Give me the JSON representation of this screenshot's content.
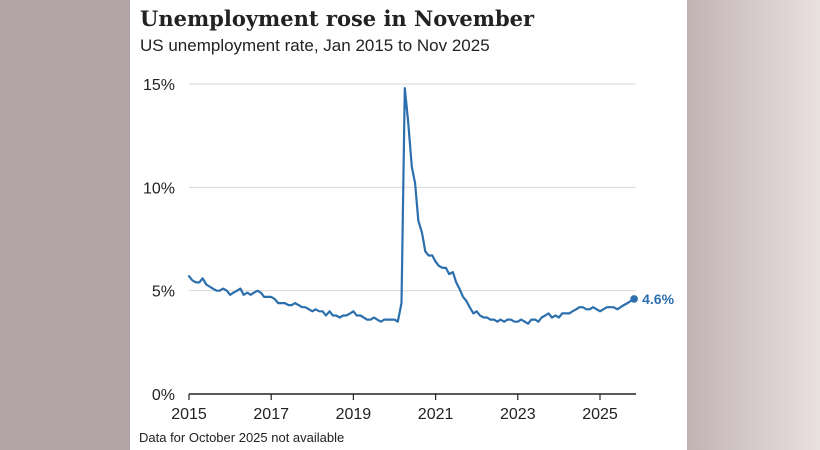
{
  "header": {
    "title": "Unemployment rose in November",
    "subtitle": "US unemployment rate, Jan 2015 to Nov 2025"
  },
  "footnote": "Data for October 2025 not available",
  "colors": {
    "line": "#2c6fad",
    "grid": "#d9d9d9",
    "axis": "#222222",
    "text": "#222222"
  },
  "chart_data": {
    "type": "line",
    "title": "Unemployment rose in November",
    "subtitle": "US unemployment rate, Jan 2015 to Nov 2025",
    "xlabel": "",
    "ylabel": "",
    "xlim": [
      2015,
      2026
    ],
    "ylim": [
      0,
      15
    ],
    "grid": true,
    "x_ticks": [
      2015,
      2017,
      2019,
      2021,
      2023,
      2025
    ],
    "x_tick_labels": [
      "2015",
      "2017",
      "2019",
      "2021",
      "2023",
      "2025"
    ],
    "y_ticks": [
      0,
      5,
      10,
      15
    ],
    "y_tick_labels": [
      "0%",
      "5%",
      "10%",
      "15%"
    ],
    "end_label": "4.6%",
    "series": [
      {
        "values": [
          [
            2015.0,
            5.7
          ],
          [
            2015.08,
            5.5
          ],
          [
            2015.17,
            5.4
          ],
          [
            2015.25,
            5.4
          ],
          [
            2015.33,
            5.6
          ],
          [
            2015.42,
            5.3
          ],
          [
            2015.5,
            5.2
          ],
          [
            2015.58,
            5.1
          ],
          [
            2015.67,
            5.0
          ],
          [
            2015.75,
            5.0
          ],
          [
            2015.83,
            5.1
          ],
          [
            2015.92,
            5.0
          ],
          [
            2016.0,
            4.8
          ],
          [
            2016.08,
            4.9
          ],
          [
            2016.17,
            5.0
          ],
          [
            2016.25,
            5.1
          ],
          [
            2016.33,
            4.8
          ],
          [
            2016.42,
            4.9
          ],
          [
            2016.5,
            4.8
          ],
          [
            2016.58,
            4.9
          ],
          [
            2016.67,
            5.0
          ],
          [
            2016.75,
            4.9
          ],
          [
            2016.83,
            4.7
          ],
          [
            2016.92,
            4.7
          ],
          [
            2017.0,
            4.7
          ],
          [
            2017.08,
            4.6
          ],
          [
            2017.17,
            4.4
          ],
          [
            2017.25,
            4.4
          ],
          [
            2017.33,
            4.4
          ],
          [
            2017.42,
            4.3
          ],
          [
            2017.5,
            4.3
          ],
          [
            2017.58,
            4.4
          ],
          [
            2017.67,
            4.3
          ],
          [
            2017.75,
            4.2
          ],
          [
            2017.83,
            4.2
          ],
          [
            2017.92,
            4.1
          ],
          [
            2018.0,
            4.0
          ],
          [
            2018.08,
            4.1
          ],
          [
            2018.17,
            4.0
          ],
          [
            2018.25,
            4.0
          ],
          [
            2018.33,
            3.8
          ],
          [
            2018.42,
            4.0
          ],
          [
            2018.5,
            3.8
          ],
          [
            2018.58,
            3.8
          ],
          [
            2018.67,
            3.7
          ],
          [
            2018.75,
            3.8
          ],
          [
            2018.83,
            3.8
          ],
          [
            2018.92,
            3.9
          ],
          [
            2019.0,
            4.0
          ],
          [
            2019.08,
            3.8
          ],
          [
            2019.17,
            3.8
          ],
          [
            2019.25,
            3.7
          ],
          [
            2019.33,
            3.6
          ],
          [
            2019.42,
            3.6
          ],
          [
            2019.5,
            3.7
          ],
          [
            2019.58,
            3.6
          ],
          [
            2019.67,
            3.5
          ],
          [
            2019.75,
            3.6
          ],
          [
            2019.83,
            3.6
          ],
          [
            2019.92,
            3.6
          ],
          [
            2020.0,
            3.6
          ],
          [
            2020.08,
            3.5
          ],
          [
            2020.17,
            4.4
          ],
          [
            2020.25,
            14.8
          ],
          [
            2020.33,
            13.2
          ],
          [
            2020.42,
            11.0
          ],
          [
            2020.5,
            10.2
          ],
          [
            2020.58,
            8.4
          ],
          [
            2020.67,
            7.8
          ],
          [
            2020.75,
            6.9
          ],
          [
            2020.83,
            6.7
          ],
          [
            2020.92,
            6.7
          ],
          [
            2021.0,
            6.4
          ],
          [
            2021.08,
            6.2
          ],
          [
            2021.17,
            6.1
          ],
          [
            2021.25,
            6.1
          ],
          [
            2021.33,
            5.8
          ],
          [
            2021.42,
            5.9
          ],
          [
            2021.5,
            5.4
          ],
          [
            2021.58,
            5.1
          ],
          [
            2021.67,
            4.7
          ],
          [
            2021.75,
            4.5
          ],
          [
            2021.83,
            4.2
          ],
          [
            2021.92,
            3.9
          ],
          [
            2022.0,
            4.0
          ],
          [
            2022.08,
            3.8
          ],
          [
            2022.17,
            3.7
          ],
          [
            2022.25,
            3.7
          ],
          [
            2022.33,
            3.6
          ],
          [
            2022.42,
            3.6
          ],
          [
            2022.5,
            3.5
          ],
          [
            2022.58,
            3.6
          ],
          [
            2022.67,
            3.5
          ],
          [
            2022.75,
            3.6
          ],
          [
            2022.83,
            3.6
          ],
          [
            2022.92,
            3.5
          ],
          [
            2023.0,
            3.5
          ],
          [
            2023.08,
            3.6
          ],
          [
            2023.17,
            3.5
          ],
          [
            2023.25,
            3.4
          ],
          [
            2023.33,
            3.6
          ],
          [
            2023.42,
            3.6
          ],
          [
            2023.5,
            3.5
          ],
          [
            2023.58,
            3.7
          ],
          [
            2023.67,
            3.8
          ],
          [
            2023.75,
            3.9
          ],
          [
            2023.83,
            3.7
          ],
          [
            2023.92,
            3.8
          ],
          [
            2024.0,
            3.7
          ],
          [
            2024.08,
            3.9
          ],
          [
            2024.17,
            3.9
          ],
          [
            2024.25,
            3.9
          ],
          [
            2024.33,
            4.0
          ],
          [
            2024.42,
            4.1
          ],
          [
            2024.5,
            4.2
          ],
          [
            2024.58,
            4.2
          ],
          [
            2024.67,
            4.1
          ],
          [
            2024.75,
            4.1
          ],
          [
            2024.83,
            4.2
          ],
          [
            2024.92,
            4.1
          ],
          [
            2025.0,
            4.0
          ],
          [
            2025.08,
            4.1
          ],
          [
            2025.17,
            4.2
          ],
          [
            2025.25,
            4.2
          ],
          [
            2025.33,
            4.2
          ],
          [
            2025.42,
            4.1
          ],
          [
            2025.5,
            4.2
          ],
          [
            2025.58,
            4.3
          ],
          [
            2025.67,
            4.4
          ],
          [
            2025.83,
            4.6
          ]
        ]
      }
    ]
  }
}
